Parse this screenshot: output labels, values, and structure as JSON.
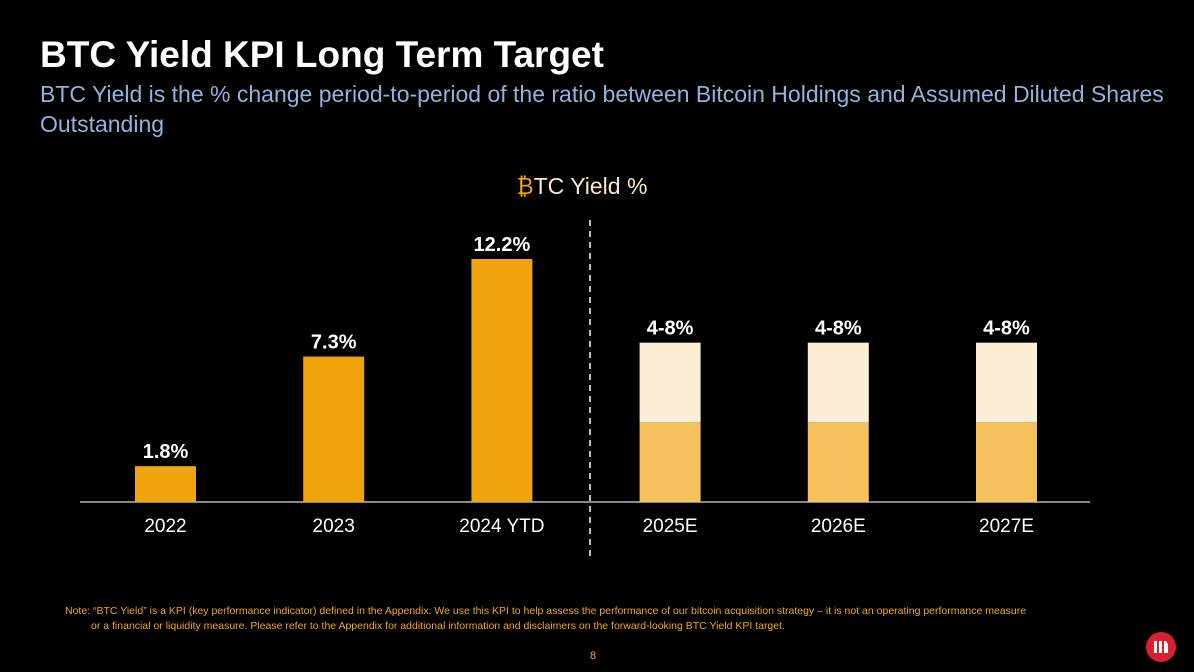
{
  "header": {
    "title": "BTC Yield KPI Long Term Target",
    "subtitle": "BTC Yield is the % change period-to-period of the ratio between Bitcoin Holdings and Assumed Diluted Shares Outstanding"
  },
  "chart_data": {
    "type": "bar",
    "title_symbol": "₿",
    "title": "TC Yield %",
    "categories": [
      "2022",
      "2023",
      "2024 YTD",
      "2025E",
      "2026E",
      "2027E"
    ],
    "values": [
      1.8,
      7.3,
      12.2,
      null,
      null,
      null
    ],
    "ranges": [
      null,
      null,
      null,
      [
        4,
        8
      ],
      [
        4,
        8
      ],
      [
        4,
        8
      ]
    ],
    "data_labels": [
      "1.8%",
      "7.3%",
      "12.2%",
      "4-8%",
      "4-8%",
      "4-8%"
    ],
    "ylim": [
      0,
      12.2
    ],
    "grid": false,
    "divider_between": [
      "2024 YTD",
      "2025E"
    ],
    "colors": {
      "actual": "#f0a30a",
      "range_low": "#f5c15c",
      "range_high": "#fcefd6",
      "title_symbol": "#f0a30a",
      "title_text": "#fde9c8"
    }
  },
  "footer": {
    "note_line1": "Note: “BTC Yield” is a KPI (key performance indicator) defined in the Appendix.  We use this KPI to help assess the performance of our bitcoin acquisition strategy – it is not an operating performance measure",
    "note_line2": "or a financial or liquidity measure. Please refer to the Appendix for additional information and disclaimers on the forward-looking BTC Yield KPI target.",
    "page_number": "8"
  }
}
